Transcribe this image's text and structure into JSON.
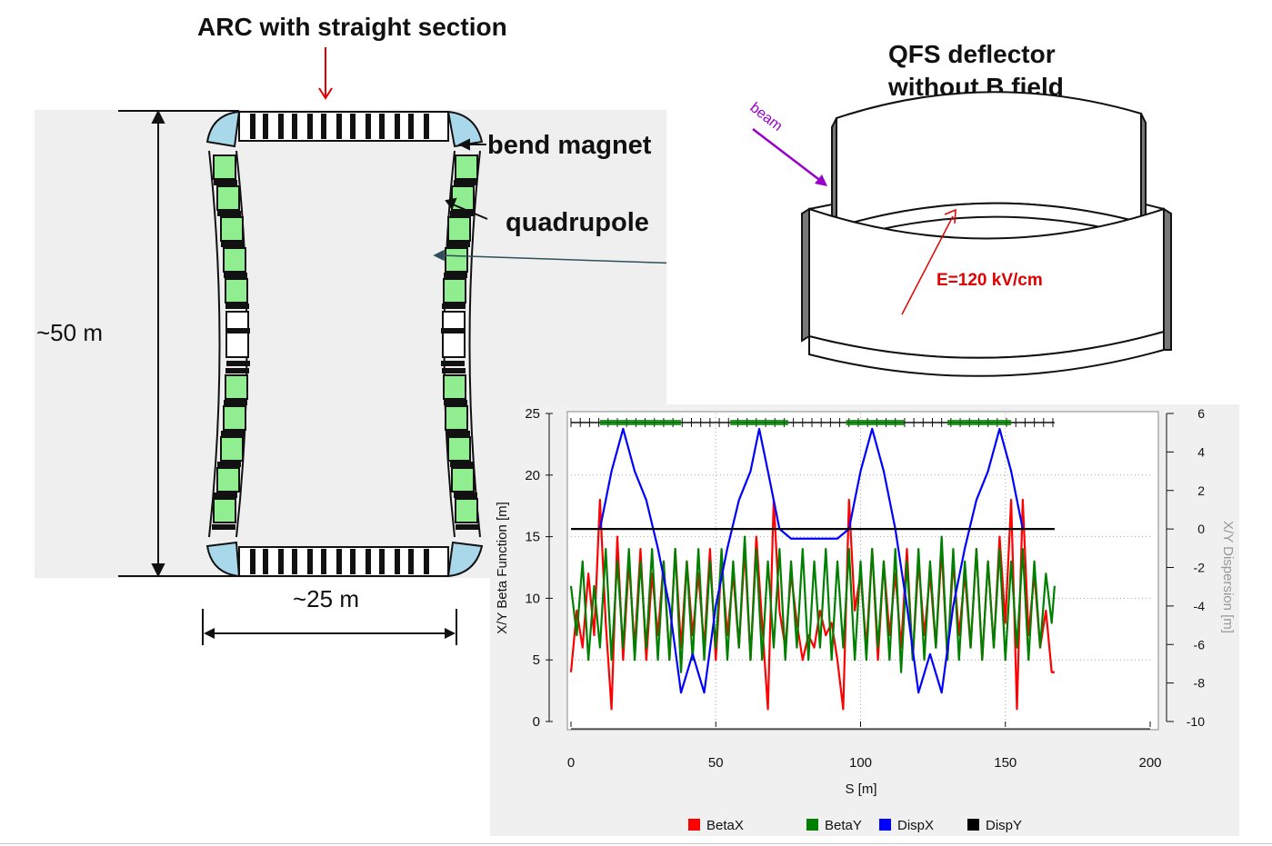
{
  "ring": {
    "title": "ARC with straight section",
    "bend_label": "bend magnet",
    "quad_label": "quadrupole",
    "height_label": "~50 m",
    "width_label": "~25 m",
    "colors": {
      "panel": "#efefef",
      "bend": "#a9d8ea",
      "quad": "#90ee90",
      "magnet_black": "#111111"
    }
  },
  "deflector": {
    "title_line1": "QFS deflector",
    "title_line2": "without B field",
    "beam_label": "beam",
    "field_label": "E=120 kV/cm",
    "colors": {
      "beam": "#9900cc",
      "field": "#e00000"
    }
  },
  "chart_data": {
    "type": "line",
    "xlabel": "S [m]",
    "ylabel": "X/Y Beta Function [m]",
    "y2label": "X/Y Dispersion [m]",
    "xlim": [
      0,
      200
    ],
    "ylim": [
      0,
      25
    ],
    "y2lim": [
      -10,
      6
    ],
    "x_ticks": [
      "0",
      "50",
      "100",
      "150",
      "200"
    ],
    "y_ticks": [
      "0",
      "5",
      "10",
      "15",
      "20",
      "25"
    ],
    "y2_ticks": [
      "-10",
      "-8",
      "-6",
      "-4",
      "-2",
      "0",
      "2",
      "4",
      "6"
    ],
    "legend_position": "bottom",
    "series": [
      {
        "name": "BetaX",
        "color": "#ff0000",
        "axis": "left",
        "x": [
          0,
          2,
          4,
          6,
          8,
          10,
          12,
          14,
          16,
          18,
          20,
          22,
          24,
          26,
          28,
          30,
          32,
          34,
          36,
          38,
          40,
          42,
          44,
          46,
          48,
          50,
          52,
          54,
          56,
          58,
          60,
          62,
          64,
          66,
          68,
          70,
          72,
          74,
          76,
          78,
          80,
          82,
          84,
          86,
          88,
          90,
          92,
          94,
          96,
          98,
          100,
          102,
          104,
          106,
          108,
          110,
          112,
          114,
          116,
          118,
          120,
          122,
          124,
          126,
          128,
          130,
          132,
          134,
          136,
          138,
          140,
          142,
          144,
          146,
          148,
          150,
          152,
          154,
          156,
          158,
          160,
          162,
          164,
          166,
          167
        ],
        "values": [
          4,
          9,
          6,
          12,
          7,
          18,
          8,
          1,
          15,
          5,
          13,
          6,
          14,
          5,
          12,
          7,
          13,
          5,
          14,
          6,
          13,
          7,
          12,
          6,
          14,
          5,
          13,
          7,
          12,
          6,
          14,
          5,
          15,
          8,
          1,
          18,
          9,
          6,
          12,
          8,
          5,
          7,
          6,
          9,
          7,
          8,
          5,
          1,
          18,
          9,
          12,
          6,
          14,
          5,
          13,
          7,
          12,
          6,
          14,
          5,
          13,
          7,
          12,
          6,
          14,
          5,
          13,
          7,
          12,
          6,
          14,
          5,
          13,
          6,
          15,
          8,
          18,
          1,
          18,
          7,
          12,
          6,
          9,
          4,
          4
        ]
      },
      {
        "name": "BetaY",
        "color": "#008000",
        "axis": "left",
        "x": [
          0,
          2,
          4,
          6,
          8,
          10,
          12,
          14,
          16,
          18,
          20,
          22,
          24,
          26,
          28,
          30,
          32,
          34,
          36,
          38,
          40,
          42,
          44,
          46,
          48,
          50,
          52,
          54,
          56,
          58,
          60,
          62,
          64,
          66,
          68,
          70,
          72,
          74,
          76,
          78,
          80,
          82,
          84,
          86,
          88,
          90,
          92,
          94,
          96,
          98,
          100,
          102,
          104,
          106,
          108,
          110,
          112,
          114,
          116,
          118,
          120,
          122,
          124,
          126,
          128,
          130,
          132,
          134,
          136,
          138,
          140,
          142,
          144,
          146,
          148,
          150,
          152,
          154,
          156,
          158,
          160,
          162,
          164,
          166,
          167
        ],
        "values": [
          11,
          7,
          13,
          5,
          11,
          6,
          14,
          5,
          13,
          6,
          14,
          5,
          13,
          6,
          14,
          5,
          13,
          5,
          14,
          4,
          13,
          5,
          14,
          5,
          13,
          6,
          14,
          5,
          13,
          6,
          15,
          5,
          14,
          5,
          13,
          6,
          14,
          5,
          13,
          6,
          14,
          5,
          13,
          6,
          14,
          5,
          13,
          6,
          14,
          5,
          13,
          5,
          14,
          6,
          13,
          5,
          14,
          4,
          13,
          5,
          14,
          5,
          13,
          6,
          15,
          5,
          14,
          5,
          13,
          6,
          14,
          5,
          13,
          6,
          14,
          5,
          13,
          6,
          14,
          5,
          13,
          6,
          12,
          8,
          11
        ]
      },
      {
        "name": "DispX",
        "color": "#0000ff",
        "axis": "right",
        "x": [
          10,
          14,
          18,
          22,
          26,
          30,
          34,
          38,
          42,
          46,
          50,
          54,
          58,
          62,
          65,
          68,
          72,
          76,
          80,
          84,
          88,
          92,
          96,
          100,
          104,
          108,
          112,
          116,
          120,
          124,
          128,
          132,
          136,
          140,
          144,
          148,
          152,
          156
        ],
        "values": [
          0,
          3,
          5.2,
          3,
          1.5,
          -1,
          -4,
          -8.5,
          -6.5,
          -8.5,
          -4,
          -1,
          1.5,
          3,
          5.2,
          3,
          0,
          -0.5,
          -0.5,
          -0.5,
          -0.5,
          -0.5,
          0,
          3,
          5.2,
          3,
          0,
          -4,
          -8.5,
          -6.5,
          -8.5,
          -4,
          -1,
          1.5,
          3,
          5.2,
          3,
          0
        ]
      },
      {
        "name": "DispY",
        "color": "#000000",
        "axis": "right",
        "x": [
          0,
          167
        ],
        "values": [
          0,
          0
        ]
      }
    ]
  }
}
